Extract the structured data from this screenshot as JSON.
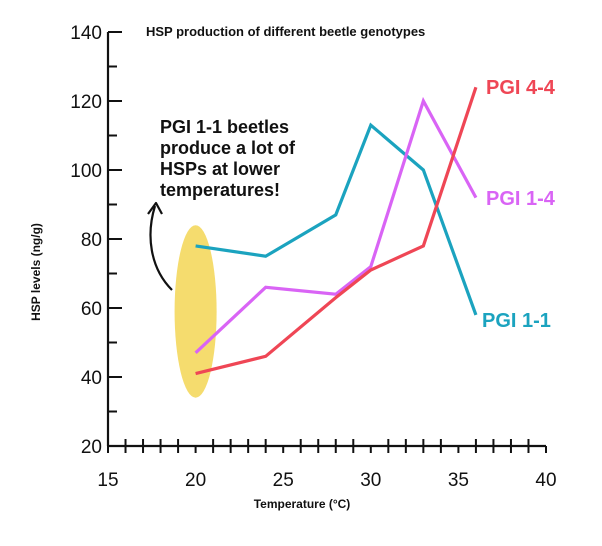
{
  "chart_data": {
    "type": "line",
    "title": "HSP production of different beetle genotypes",
    "xlabel": "Temperature (°C)",
    "ylabel": "HSP  levels (ng/g)",
    "xlim": [
      15,
      40
    ],
    "ylim": [
      20,
      140
    ],
    "x_major_ticks": [
      15,
      20,
      25,
      30,
      35,
      40
    ],
    "x_tick_labels": [
      "15",
      "20",
      "25",
      "30",
      "35",
      "40"
    ],
    "y_major_ticks": [
      20,
      40,
      60,
      80,
      100,
      120,
      140
    ],
    "y_tick_labels": [
      "20",
      "40",
      "60",
      "80",
      "100",
      "120",
      "140"
    ],
    "grid": false,
    "series": [
      {
        "name": "PGI 1-1",
        "color": "#1ba3bf",
        "x": [
          20,
          24,
          28,
          30,
          33,
          36
        ],
        "y": [
          78,
          75,
          87,
          113,
          100,
          58
        ]
      },
      {
        "name": "PGI 1-4",
        "color": "#d964f5",
        "x": [
          20,
          24,
          28,
          30,
          33,
          36
        ],
        "y": [
          47,
          66,
          64,
          72,
          120,
          92
        ]
      },
      {
        "name": "PGI 4-4",
        "color": "#ef4655",
        "x": [
          20,
          24,
          28,
          30,
          33,
          36
        ],
        "y": [
          41,
          46,
          63,
          71,
          78,
          124
        ]
      }
    ],
    "annotation": {
      "lines": [
        "PGI 1-1 beetles",
        "produce a lot of",
        "HSPs at lower",
        "temperatures!"
      ],
      "highlight_color": "#f5dc6e",
      "highlight_center": [
        20,
        59
      ],
      "highlight_radius": [
        1.2,
        25
      ]
    }
  }
}
